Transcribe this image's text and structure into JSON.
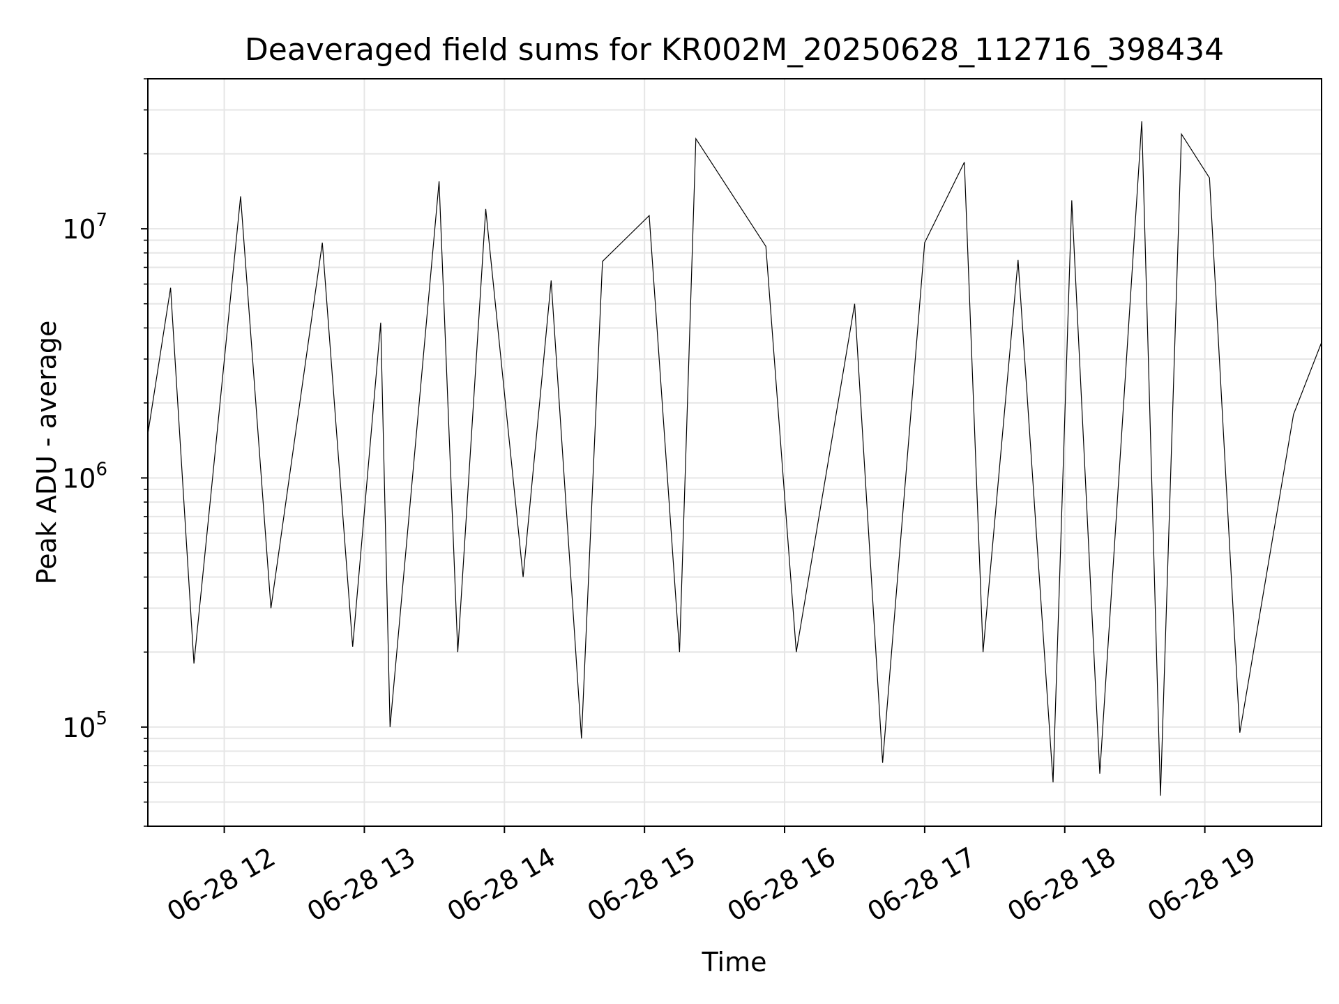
{
  "chart_data": {
    "type": "line",
    "title": "Deaveraged field sums for KR002M_20250628_112716_398434",
    "xlabel": "Time",
    "ylabel": "Peak ADU - average",
    "yscale": "log",
    "ylim": [
      40000,
      40000000
    ],
    "xlim": [
      "2025-06-28T11:27:16",
      "2025-06-28T19:50:00"
    ],
    "grid": true,
    "line_color": "#000000",
    "x_ticks": [
      {
        "t": "2025-06-28T12:00:00",
        "label": "06-28 12"
      },
      {
        "t": "2025-06-28T13:00:00",
        "label": "06-28 13"
      },
      {
        "t": "2025-06-28T14:00:00",
        "label": "06-28 14"
      },
      {
        "t": "2025-06-28T15:00:00",
        "label": "06-28 15"
      },
      {
        "t": "2025-06-28T16:00:00",
        "label": "06-28 16"
      },
      {
        "t": "2025-06-28T17:00:00",
        "label": "06-28 17"
      },
      {
        "t": "2025-06-28T18:00:00",
        "label": "06-28 18"
      },
      {
        "t": "2025-06-28T19:00:00",
        "label": "06-28 19"
      }
    ],
    "y_ticks": [
      {
        "value": 100000,
        "base": "10",
        "exp": "5"
      },
      {
        "value": 1000000,
        "base": "10",
        "exp": "6"
      },
      {
        "value": 10000000,
        "base": "10",
        "exp": "7"
      }
    ],
    "series": [
      {
        "x": [
          "2025-06-28T11:27:16",
          "2025-06-28T11:37:00",
          "2025-06-28T11:47:00",
          "2025-06-28T11:55:00",
          "2025-06-28T12:07:00",
          "2025-06-28T12:20:00",
          "2025-06-28T12:42:00",
          "2025-06-28T12:55:00",
          "2025-06-28T13:07:00",
          "2025-06-28T13:11:00",
          "2025-06-28T13:32:00",
          "2025-06-28T13:40:00",
          "2025-06-28T13:52:00",
          "2025-06-28T14:08:00",
          "2025-06-28T14:20:00",
          "2025-06-28T14:33:00",
          "2025-06-28T14:42:00",
          "2025-06-28T15:02:00",
          "2025-06-28T15:15:00",
          "2025-06-28T15:22:00",
          "2025-06-28T15:52:00",
          "2025-06-28T16:05:00",
          "2025-06-28T16:30:00",
          "2025-06-28T16:42:00",
          "2025-06-28T17:00:00",
          "2025-06-28T17:17:00",
          "2025-06-28T17:25:00",
          "2025-06-28T17:40:00",
          "2025-06-28T17:55:00",
          "2025-06-28T18:03:00",
          "2025-06-28T18:15:00",
          "2025-06-28T18:33:00",
          "2025-06-28T18:41:00",
          "2025-06-28T18:50:00",
          "2025-06-28T19:02:00",
          "2025-06-28T19:15:00",
          "2025-06-28T19:38:00",
          "2025-06-28T19:50:00"
        ],
        "y": [
          1500000,
          5800000,
          180000,
          1000000,
          13500000,
          300000,
          8800000,
          210000,
          4200000,
          100000,
          15500000,
          200000,
          12000000,
          400000,
          6200000,
          90000,
          7400000,
          11300000,
          200000,
          23000000,
          8500000,
          200000,
          5000000,
          72000,
          8800000,
          18500000,
          200000,
          7500000,
          60000,
          13000000,
          65000,
          27000000,
          53000,
          24000000,
          16000000,
          95000,
          1800000,
          3500000
        ]
      }
    ]
  }
}
